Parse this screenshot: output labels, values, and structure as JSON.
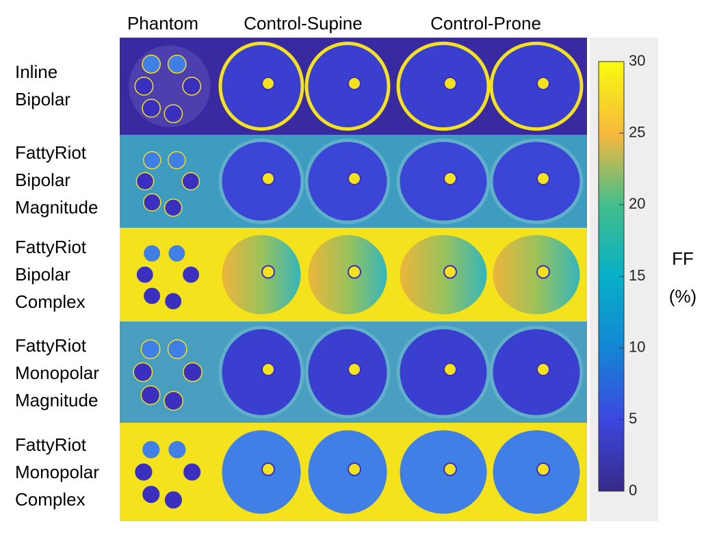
{
  "columns": [
    "Phantom",
    "Control-Supine",
    "Control-Prone"
  ],
  "rows": [
    [
      "Inline",
      "Bipolar"
    ],
    [
      "FattyRiot",
      "Bipolar",
      "Magnitude"
    ],
    [
      "FattyRiot",
      "Bipolar",
      "Complex"
    ],
    [
      "FattyRiot",
      "Monopolar",
      "Magnitude"
    ],
    [
      "FattyRiot",
      "Monopolar",
      "Complex"
    ]
  ],
  "colorbar": {
    "lim": [
      0,
      30
    ],
    "ticks": [
      0,
      5,
      10,
      15,
      20,
      25,
      30
    ],
    "label": [
      "FF",
      "(%)"
    ]
  }
}
